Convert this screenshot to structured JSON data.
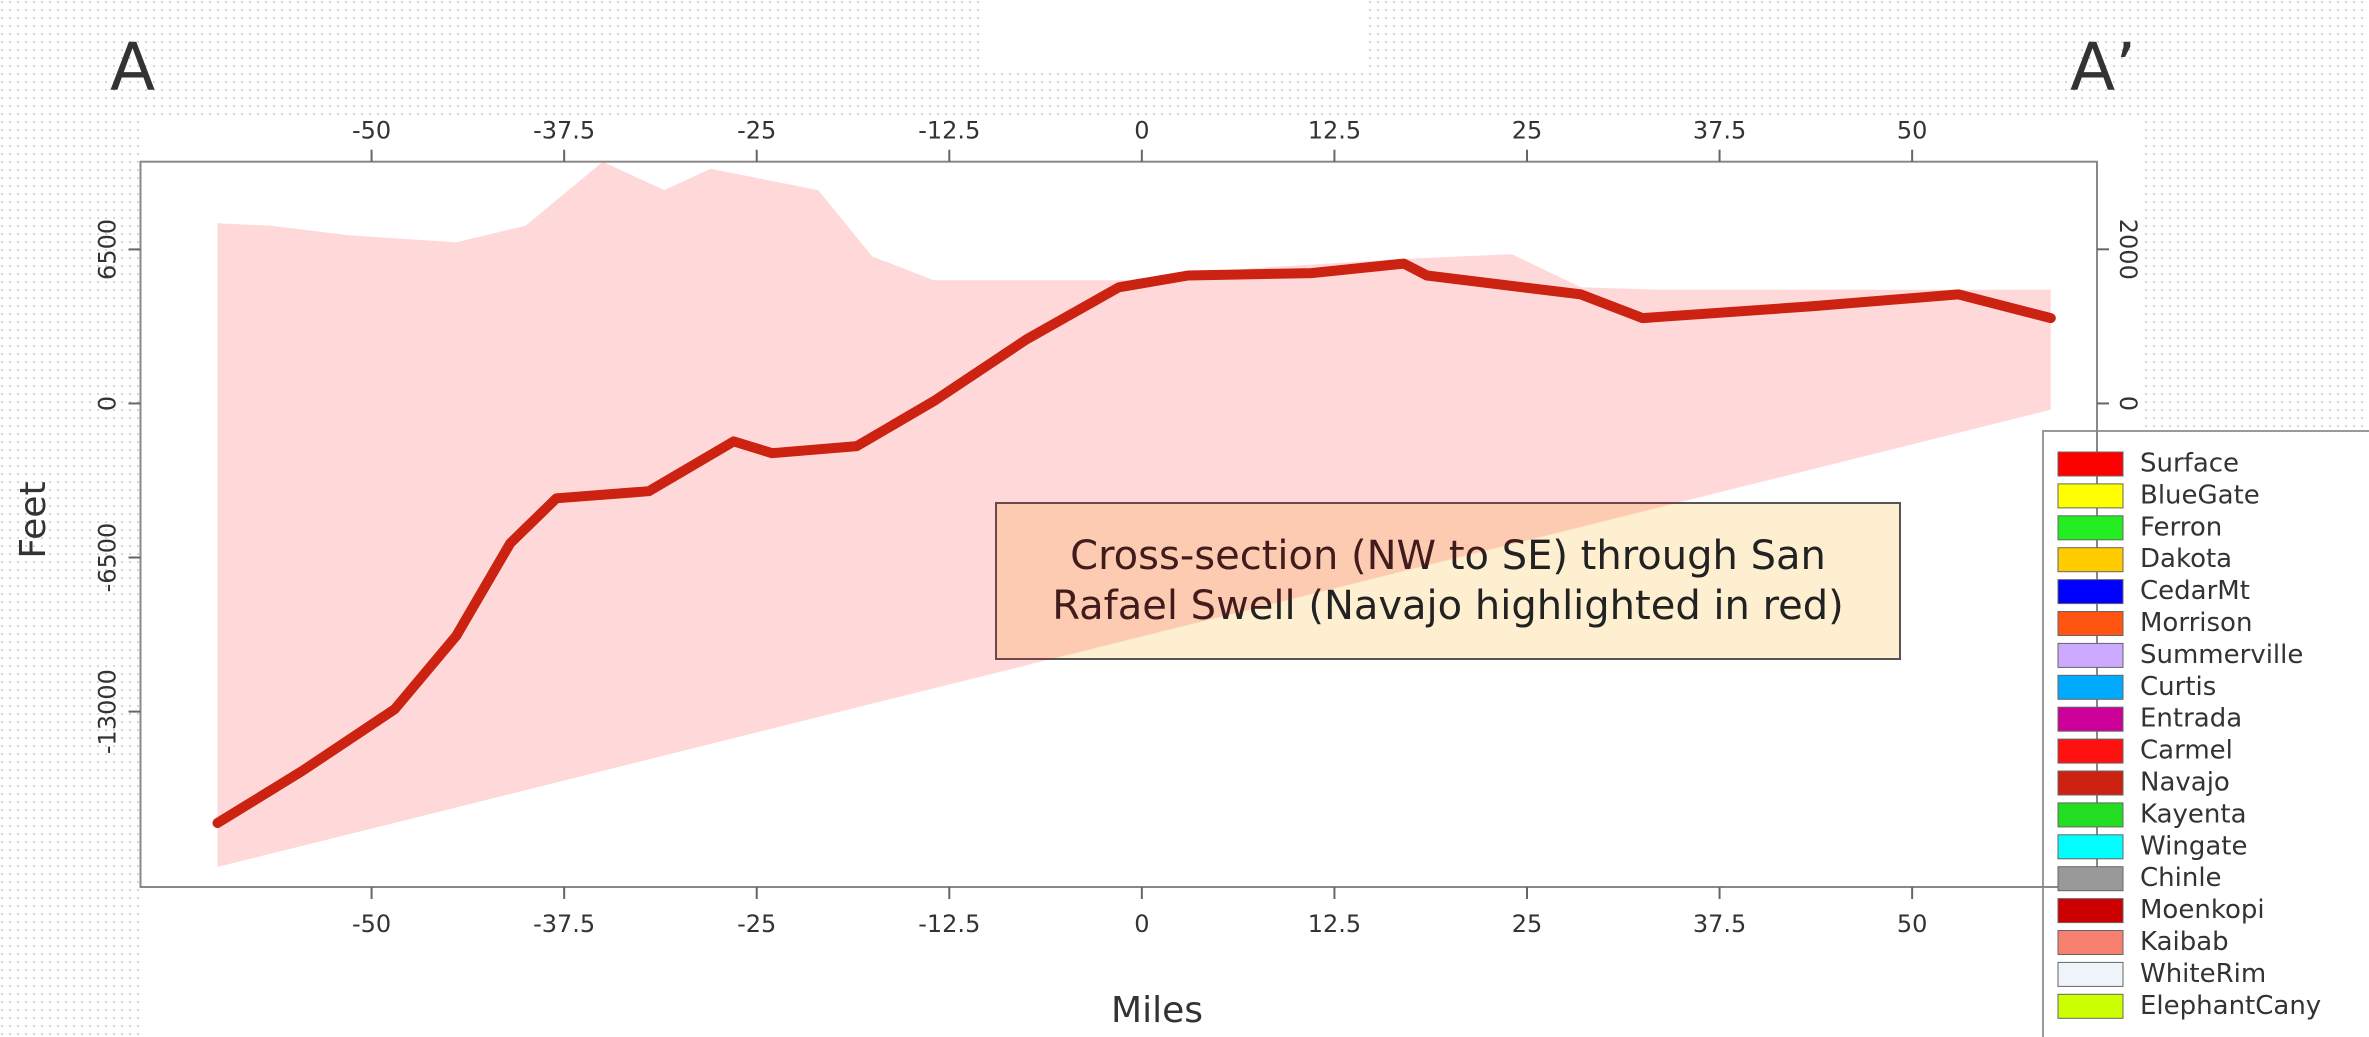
{
  "chart_data": {
    "type": "area",
    "label_left": "A",
    "label_right": "A’",
    "x_label": "Miles",
    "y_label": "Feet",
    "annotation": "Cross-section (NW to SE) through San Rafael Swell (Navajo highlighted in red)",
    "xlim": [
      -65,
      62
    ],
    "xticks": [
      -50,
      -37.5,
      -25,
      -12.5,
      0,
      12.5,
      25,
      37.5,
      50
    ],
    "ylim": [
      -20400,
      10200
    ],
    "yticks": [
      -13000,
      -6500,
      0,
      6500
    ],
    "y2lim": [
      -6275,
      3137
    ],
    "y2ticks": [
      0,
      2000
    ],
    "legend_position": "right",
    "series": [
      {
        "name": "Surface",
        "color": "#ff0000",
        "x": [
          -60,
          -56.5,
          -51.5,
          -44.5,
          -40,
          -35,
          -31,
          -28,
          -21,
          -17.5,
          -13.5,
          -5.5,
          0.5,
          7,
          17,
          24,
          28.5,
          33.5,
          59
        ],
        "values": [
          7600,
          7500,
          7100,
          6800,
          7500,
          10200,
          9000,
          9900,
          9000,
          6200,
          5200,
          5200,
          5200,
          5700,
          6100,
          6300,
          4900,
          4800,
          4800
        ]
      },
      {
        "name": "BlueGate",
        "color": "#ffff00"
      },
      {
        "name": "Ferron",
        "color": "#22ee22"
      },
      {
        "name": "Dakota",
        "color": "#ffcc00"
      },
      {
        "name": "CedarMt",
        "color": "#0000ff"
      },
      {
        "name": "Morrison",
        "color": "#ff5511"
      },
      {
        "name": "Summerville",
        "color": "#ccaaff"
      },
      {
        "name": "Curtis",
        "color": "#00aaff"
      },
      {
        "name": "Entrada",
        "color": "#cc0099"
      },
      {
        "name": "Carmel",
        "color": "#ff1111"
      },
      {
        "name": "Navajo",
        "color": "#cc2211",
        "x": [
          -60,
          -54.5,
          -48.5,
          -44.5,
          -41,
          -38,
          -32,
          -26.5,
          -24,
          -18.5,
          -13.5,
          -7.5,
          -1.5,
          3,
          11,
          17,
          18.5,
          28.5,
          32.5,
          43.5,
          53,
          59
        ],
        "values": [
          -17700,
          -15500,
          -12900,
          -9800,
          -5900,
          -4000,
          -3700,
          -1600,
          -2100,
          -1800,
          100,
          2700,
          4900,
          5400,
          5500,
          5900,
          5400,
          4600,
          3600,
          4100,
          4600,
          3600
        ]
      },
      {
        "name": "Kayenta",
        "color": "#22dd22"
      },
      {
        "name": "Wingate",
        "color": "#00ffff"
      },
      {
        "name": "Chinle",
        "color": "#999999"
      },
      {
        "name": "Moenkopi",
        "color": "#cc0000"
      },
      {
        "name": "Kaibab",
        "color": "#f88070"
      },
      {
        "name": "WhiteRim",
        "color": "#eef4fa"
      },
      {
        "name": "ElephantCany",
        "color": "#ccff00"
      }
    ]
  }
}
